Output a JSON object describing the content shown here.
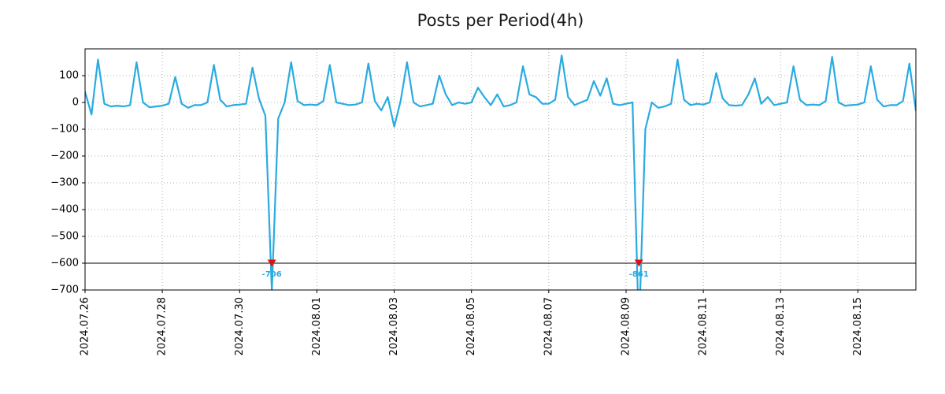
{
  "chart_data": {
    "type": "line",
    "title": "Posts per Period(4h)",
    "x_start": "2024-07-26 00:00",
    "step_hours": 4,
    "ylim": [
      -700,
      200
    ],
    "yticks": [
      100,
      0,
      -100,
      -200,
      -300,
      -400,
      -500,
      -600,
      -700
    ],
    "xticks": [
      {
        "day": 0,
        "label": "2024.07.26"
      },
      {
        "day": 2,
        "label": "2024.07.28"
      },
      {
        "day": 4,
        "label": "2024.07.30"
      },
      {
        "day": 6,
        "label": "2024.08.01"
      },
      {
        "day": 8,
        "label": "2024.08.03"
      },
      {
        "day": 10,
        "label": "2024.08.05"
      },
      {
        "day": 12,
        "label": "2024.08.07"
      },
      {
        "day": 14,
        "label": "2024.08.09"
      },
      {
        "day": 16,
        "label": "2024.08.11"
      },
      {
        "day": 18,
        "label": "2024.08.13"
      },
      {
        "day": 20,
        "label": "2024.08.15"
      }
    ],
    "grid": true,
    "hline_y": -600,
    "values": [
      40,
      -45,
      160,
      -5,
      -15,
      -12,
      -15,
      -10,
      150,
      0,
      -18,
      -15,
      -12,
      -5,
      95,
      -5,
      -20,
      -10,
      -10,
      0,
      140,
      10,
      -15,
      -10,
      -8,
      -5,
      130,
      15,
      -50,
      -706,
      -60,
      0,
      150,
      5,
      -10,
      -8,
      -10,
      5,
      140,
      0,
      -5,
      -10,
      -8,
      0,
      145,
      5,
      -30,
      20,
      -90,
      5,
      150,
      0,
      -15,
      -10,
      -5,
      100,
      30,
      -10,
      0,
      -5,
      0,
      55,
      20,
      -10,
      30,
      -15,
      -10,
      0,
      135,
      30,
      20,
      -5,
      -5,
      10,
      175,
      20,
      -10,
      0,
      10,
      80,
      25,
      90,
      -5,
      -10,
      -5,
      0,
      -861,
      -100,
      0,
      -20,
      -15,
      -5,
      160,
      10,
      -10,
      -5,
      -8,
      0,
      110,
      15,
      -10,
      -12,
      -10,
      30,
      90,
      -5,
      20,
      -10,
      -5,
      0,
      135,
      10,
      -10,
      -8,
      -10,
      5,
      170,
      0,
      -12,
      -10,
      -8,
      0,
      135,
      10,
      -15,
      -10,
      -10,
      5,
      145,
      -30
    ],
    "annotations": [
      {
        "index": 29,
        "value": -706,
        "label": "-706",
        "marker_y": -600
      },
      {
        "index": 86,
        "value": -861,
        "label": "-861",
        "marker_y": -600
      }
    ]
  },
  "style": {
    "line_color": "#29abe2",
    "marker_color": "#e01010",
    "annotation_color": "#29abe2",
    "grid_color": "#b0b0b0",
    "axis_color": "#000000",
    "hline_color": "#000000",
    "tick_label_color": "#000000",
    "title_color": "#1a1a1a",
    "background": "#ffffff"
  }
}
